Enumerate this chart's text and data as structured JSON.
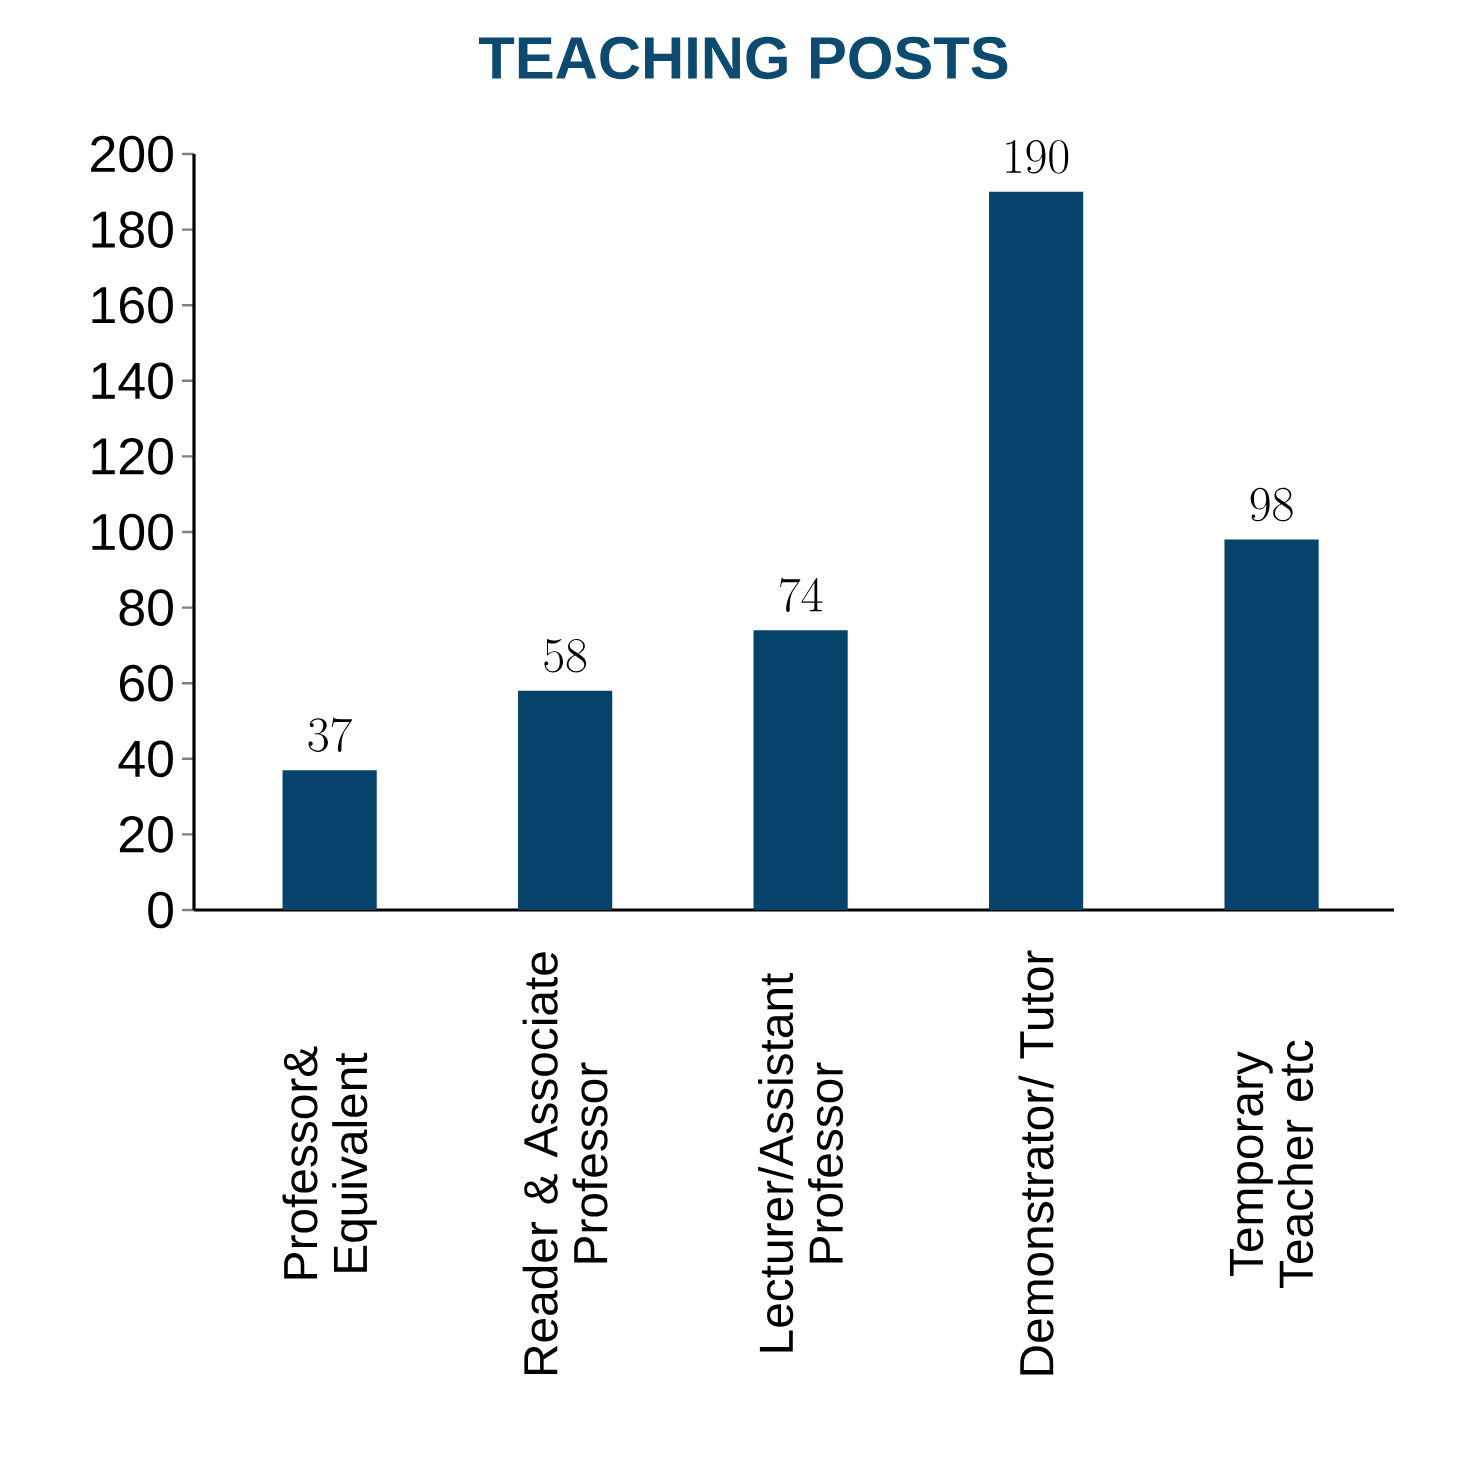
{
  "chart_data": {
    "type": "bar",
    "title": "TEACHING POSTS",
    "categories": [
      "Professor& Equivalent",
      "Reader & Associate Professor",
      "Lecturer/Assistant Professor",
      "Demonstrator/ Tutor",
      "Temporary Teacher etc"
    ],
    "values": [
      37,
      58,
      74,
      190,
      98
    ],
    "color": "#05436a",
    "data_labels": true,
    "ylim": [
      0,
      200
    ],
    "yticks": [
      0,
      20,
      40,
      60,
      80,
      100,
      120,
      140,
      160,
      180,
      200
    ]
  }
}
